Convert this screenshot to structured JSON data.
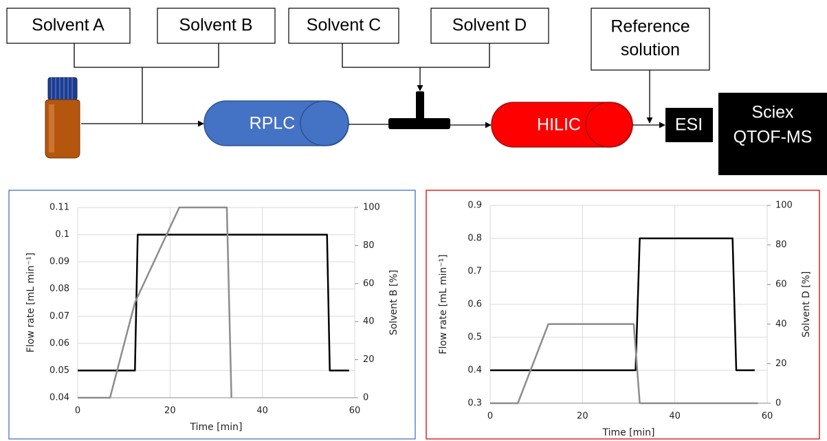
{
  "diagram": {
    "solvent_a": "Solvent A",
    "solvent_b": "Solvent B",
    "solvent_c": "Solvent C",
    "solvent_d": "Solvent D",
    "reference": [
      "Reference",
      "solution"
    ],
    "rplc": "RPLC",
    "hilic": "HILIC",
    "esi": "ESI",
    "ms": [
      "Sciex",
      "QTOF-MS"
    ]
  },
  "chart_data": [
    {
      "type": "line",
      "xlabel": "Time [min]",
      "ylabel": "Flow rate [mL min⁻¹]",
      "y2label": "Solvent B [%]",
      "xlim": [
        0,
        60
      ],
      "xticks": [
        0,
        20,
        40,
        60
      ],
      "ylim": [
        0.04,
        0.11
      ],
      "yticks": [
        0.04,
        0.05,
        0.06,
        0.07,
        0.08,
        0.09,
        0.1,
        0.11
      ],
      "y2lim": [
        0,
        100
      ],
      "y2ticks": [
        0,
        20,
        40,
        60,
        80,
        100
      ],
      "grid": true,
      "series": [
        {
          "color": "#000000",
          "x": [
            0,
            12.4,
            13,
            54,
            54.6,
            58.8
          ],
          "values": [
            0.05,
            0.05,
            0.1,
            0.1,
            0.05,
            0.05
          ]
        },
        {
          "color": "#8c8c8c",
          "axis": "y2",
          "x": [
            0,
            7,
            12.4,
            22,
            32.3,
            33.3
          ],
          "values": [
            0,
            0,
            50,
            100,
            100,
            0
          ]
        }
      ]
    },
    {
      "type": "line",
      "xlabel": "Time [min]",
      "ylabel": "Flow rate [mL min⁻¹]",
      "y2label": "Solvent D [%]",
      "xlim": [
        0,
        60
      ],
      "xticks": [
        0,
        20,
        40,
        60
      ],
      "ylim": [
        0.3,
        0.9
      ],
      "yticks": [
        0.3,
        0.4,
        0.5,
        0.6,
        0.7,
        0.8,
        0.9
      ],
      "y2lim": [
        0,
        100
      ],
      "y2ticks": [
        0,
        20,
        40,
        60,
        80,
        100
      ],
      "grid": true,
      "series": [
        {
          "color": "#000000",
          "x": [
            0,
            31.5,
            32.4,
            52.5,
            53.3,
            57.3
          ],
          "values": [
            0.4,
            0.4,
            0.8,
            0.8,
            0.4,
            0.4
          ]
        },
        {
          "color": "#8c8c8c",
          "axis": "y2",
          "x": [
            0,
            6,
            12.6,
            31.1,
            32.4,
            58
          ],
          "values": [
            0,
            0,
            40,
            40,
            0,
            0
          ]
        }
      ]
    }
  ]
}
